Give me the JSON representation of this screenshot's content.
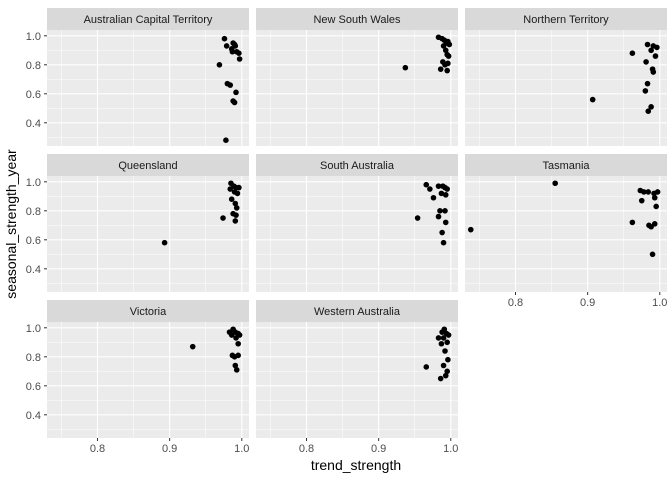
{
  "chart_data": {
    "type": "scatter",
    "faceted": true,
    "facet_columns": 3,
    "xlabel": "trend_strength",
    "ylabel": "seasonal_strength_year",
    "xlim": [
      0.73,
      1.01
    ],
    "ylim": [
      0.24,
      1.04
    ],
    "x_ticks": [
      0.8,
      0.9,
      1.0
    ],
    "x_tick_labels": [
      "0.8",
      "0.9",
      "1.0"
    ],
    "y_ticks": [
      0.4,
      0.6,
      0.8,
      1.0
    ],
    "y_tick_labels": [
      "0.4",
      "0.6",
      "0.8",
      "1.0"
    ],
    "grid": true,
    "colors": {
      "panel_bg": "#ebebeb",
      "strip_bg": "#d9d9d9",
      "grid_major": "#ffffff",
      "point": "#000000"
    },
    "panels": [
      {
        "name": "Australian Capital Territory",
        "points": [
          [
            0.976,
            0.98
          ],
          [
            0.979,
            0.93
          ],
          [
            0.986,
            0.91
          ],
          [
            0.988,
            0.95
          ],
          [
            0.991,
            0.93
          ],
          [
            0.993,
            0.89
          ],
          [
            0.996,
            0.88
          ],
          [
            0.99,
            0.94
          ],
          [
            0.987,
            0.89
          ],
          [
            0.969,
            0.8
          ],
          [
            0.997,
            0.84
          ],
          [
            0.98,
            0.67
          ],
          [
            0.984,
            0.66
          ],
          [
            0.992,
            0.61
          ],
          [
            0.988,
            0.55
          ],
          [
            0.99,
            0.54
          ],
          [
            0.978,
            0.28
          ]
        ]
      },
      {
        "name": "New South Wales",
        "points": [
          [
            0.937,
            0.78
          ],
          [
            0.983,
            0.99
          ],
          [
            0.988,
            0.98
          ],
          [
            0.991,
            0.97
          ],
          [
            0.994,
            0.95
          ],
          [
            0.996,
            0.96
          ],
          [
            0.99,
            0.93
          ],
          [
            0.993,
            0.9
          ],
          [
            0.995,
            0.87
          ],
          [
            0.997,
            0.86
          ],
          [
            0.989,
            0.82
          ],
          [
            0.992,
            0.8
          ],
          [
            0.996,
            0.81
          ],
          [
            0.986,
            0.77
          ],
          [
            0.995,
            0.76
          ],
          [
            0.998,
            0.94
          ]
        ]
      },
      {
        "name": "Northern Territory",
        "points": [
          [
            0.907,
            0.56
          ],
          [
            0.962,
            0.88
          ],
          [
            0.983,
            0.94
          ],
          [
            0.991,
            0.93
          ],
          [
            0.996,
            0.92
          ],
          [
            0.988,
            0.9
          ],
          [
            0.994,
            0.86
          ],
          [
            0.981,
            0.82
          ],
          [
            0.99,
            0.77
          ],
          [
            0.991,
            0.75
          ],
          [
            0.983,
            0.67
          ],
          [
            0.98,
            0.62
          ],
          [
            0.988,
            0.51
          ],
          [
            0.984,
            0.48
          ]
        ]
      },
      {
        "name": "Queensland",
        "points": [
          [
            0.893,
            0.58
          ],
          [
            0.974,
            0.75
          ],
          [
            0.985,
            0.99
          ],
          [
            0.989,
            0.97
          ],
          [
            0.992,
            0.96
          ],
          [
            0.996,
            0.96
          ],
          [
            0.984,
            0.95
          ],
          [
            0.99,
            0.93
          ],
          [
            0.994,
            0.92
          ],
          [
            0.986,
            0.88
          ],
          [
            0.991,
            0.85
          ],
          [
            0.993,
            0.82
          ],
          [
            0.988,
            0.78
          ],
          [
            0.992,
            0.77
          ],
          [
            0.991,
            0.73
          ]
        ]
      },
      {
        "name": "South Australia",
        "points": [
          [
            0.954,
            0.75
          ],
          [
            0.966,
            0.98
          ],
          [
            0.971,
            0.95
          ],
          [
            0.976,
            0.89
          ],
          [
            0.983,
            0.97
          ],
          [
            0.989,
            0.97
          ],
          [
            0.992,
            0.96
          ],
          [
            0.995,
            0.95
          ],
          [
            0.987,
            0.92
          ],
          [
            0.993,
            0.91
          ],
          [
            0.985,
            0.8
          ],
          [
            0.992,
            0.8
          ],
          [
            0.983,
            0.76
          ],
          [
            0.993,
            0.72
          ],
          [
            0.988,
            0.65
          ],
          [
            0.99,
            0.58
          ]
        ]
      },
      {
        "name": "Tasmania",
        "points": [
          [
            0.738,
            0.67
          ],
          [
            0.855,
            0.99
          ],
          [
            0.962,
            0.72
          ],
          [
            0.973,
            0.94
          ],
          [
            0.978,
            0.93
          ],
          [
            0.984,
            0.93
          ],
          [
            0.992,
            0.92
          ],
          [
            0.997,
            0.93
          ],
          [
            0.975,
            0.87
          ],
          [
            0.993,
            0.89
          ],
          [
            0.995,
            0.83
          ],
          [
            0.985,
            0.7
          ],
          [
            0.988,
            0.69
          ],
          [
            0.993,
            0.71
          ],
          [
            0.99,
            0.5
          ]
        ]
      },
      {
        "name": "Victoria",
        "points": [
          [
            0.932,
            0.87
          ],
          [
            0.983,
            0.97
          ],
          [
            0.988,
            0.99
          ],
          [
            0.991,
            0.97
          ],
          [
            0.995,
            0.96
          ],
          [
            0.997,
            0.95
          ],
          [
            0.986,
            0.95
          ],
          [
            0.992,
            0.93
          ],
          [
            0.995,
            0.89
          ],
          [
            0.987,
            0.81
          ],
          [
            0.99,
            0.8
          ],
          [
            0.995,
            0.81
          ],
          [
            0.991,
            0.74
          ],
          [
            0.993,
            0.71
          ]
        ]
      },
      {
        "name": "Western Australia",
        "points": [
          [
            0.966,
            0.73
          ],
          [
            0.983,
            0.93
          ],
          [
            0.988,
            0.97
          ],
          [
            0.991,
            0.99
          ],
          [
            0.994,
            0.96
          ],
          [
            0.997,
            0.95
          ],
          [
            0.99,
            0.93
          ],
          [
            0.987,
            0.89
          ],
          [
            0.995,
            0.9
          ],
          [
            0.992,
            0.84
          ],
          [
            0.996,
            0.78
          ],
          [
            0.99,
            0.74
          ],
          [
            0.995,
            0.7
          ],
          [
            0.993,
            0.67
          ],
          [
            0.986,
            0.65
          ]
        ]
      }
    ]
  }
}
